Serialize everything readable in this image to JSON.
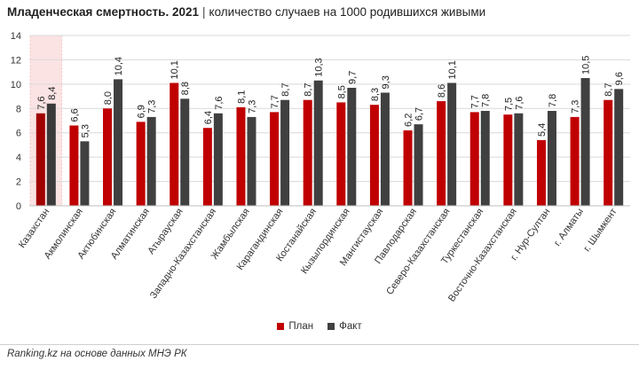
{
  "colors": {
    "plan": "#c00000",
    "fact": "#404040",
    "plan_highlight": "#a00000",
    "fact_highlight": "#3a3a3a",
    "highlight_bg": "#fbe3e3",
    "grid": "#d9d9d9"
  },
  "header": {
    "title_bold": "Младенческая смертность. 2021",
    "title_sep": "|",
    "title_rest": "количество случаев на 1000 родившихся живыми"
  },
  "footer": {
    "source_prefix": "Ranking.kz",
    "source_rest": " на основе данных МНЭ РК"
  },
  "chart_data": {
    "type": "bar",
    "title": "Младенческая смертность. 2021 | количество случаев на 1000 родившихся живыми",
    "categories": [
      "Казахстан",
      "Акмолинская",
      "Актюбинская",
      "Алматинская",
      "Атырауская",
      "Западно-Казахстанская",
      "Жамбылская",
      "Карагандинская",
      "Костанайская",
      "Кызылординская",
      "Мангистауская",
      "Павлодарская",
      "Северо-Казахстанская",
      "Туркестанская",
      "Восточно-Казахстанская",
      "г. Нур-Султан",
      "г. Алматы",
      "г. Шымкент"
    ],
    "series": [
      {
        "name": "План",
        "values": [
          7.6,
          6.6,
          8.0,
          6.9,
          10.1,
          6.4,
          8.1,
          7.7,
          8.7,
          8.5,
          8.3,
          6.2,
          8.6,
          7.7,
          7.5,
          5.4,
          7.3,
          8.7
        ]
      },
      {
        "name": "Факт",
        "values": [
          8.4,
          5.3,
          10.4,
          7.3,
          8.8,
          7.6,
          7.3,
          8.7,
          10.3,
          9.7,
          9.3,
          6.7,
          10.1,
          7.8,
          7.6,
          7.8,
          10.5,
          9.6
        ]
      }
    ],
    "value_labels": [
      [
        "7,6",
        "6,6",
        "8,0",
        "6,9",
        "10,1",
        "6,4",
        "8,1",
        "7,7",
        "8,7",
        "8,5",
        "8,3",
        "6,2",
        "8,6",
        "7,7",
        "7,5",
        "5,4",
        "7,3",
        "8,7"
      ],
      [
        "8,4",
        "5,3",
        "10,4",
        "7,3",
        "8,8",
        "7,6",
        "7,3",
        "8,7",
        "10,3",
        "9,7",
        "9,3",
        "6,7",
        "10,1",
        "7,8",
        "7,6",
        "7,8",
        "10,5",
        "9,6"
      ]
    ],
    "ylim": [
      0,
      14
    ],
    "yticks": [
      0,
      2,
      4,
      6,
      8,
      10,
      12,
      14
    ],
    "highlight_category": "Казахстан",
    "grid": true,
    "legend_position": "bottom"
  }
}
